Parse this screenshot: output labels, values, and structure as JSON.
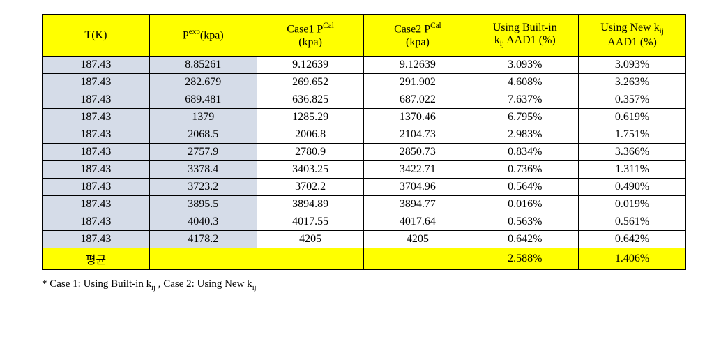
{
  "table": {
    "columns": [
      {
        "key": "tk",
        "labelHtml": "T(K)"
      },
      {
        "key": "pexp",
        "labelHtml": "P<sup>exp</sup>(kpa)"
      },
      {
        "key": "case1",
        "labelHtml": "Case1 P<sup>Cal</sup><br>(kpa)"
      },
      {
        "key": "case2",
        "labelHtml": "Case2 P<sup>Cal</sup><br>(kpa)"
      },
      {
        "key": "builtin",
        "labelHtml": "Using Built-in<br>k<sub>ij</sub> AAD1 (%)"
      },
      {
        "key": "newkij",
        "labelHtml": "Using New k<sub>ij</sub><br>AAD1 (%)"
      }
    ],
    "rows": [
      [
        "187.43",
        "8.85261",
        "9.12639",
        "9.12639",
        "3.093%",
        "3.093%"
      ],
      [
        "187.43",
        "282.679",
        "269.652",
        "291.902",
        "4.608%",
        "3.263%"
      ],
      [
        "187.43",
        "689.481",
        "636.825",
        "687.022",
        "7.637%",
        "0.357%"
      ],
      [
        "187.43",
        "1379",
        "1285.29",
        "1370.46",
        "6.795%",
        "0.619%"
      ],
      [
        "187.43",
        "2068.5",
        "2006.8",
        "2104.73",
        "2.983%",
        "1.751%"
      ],
      [
        "187.43",
        "2757.9",
        "2780.9",
        "2850.73",
        "0.834%",
        "3.366%"
      ],
      [
        "187.43",
        "3378.4",
        "3403.25",
        "3422.71",
        "0.736%",
        "1.311%"
      ],
      [
        "187.43",
        "3723.2",
        "3702.2",
        "3704.96",
        "0.564%",
        "0.490%"
      ],
      [
        "187.43",
        "3895.5",
        "3894.89",
        "3894.77",
        "0.016%",
        "0.019%"
      ],
      [
        "187.43",
        "4040.3",
        "4017.55",
        "4017.64",
        "0.563%",
        "0.561%"
      ],
      [
        "187.43",
        "4178.2",
        "4205",
        "4205",
        "0.642%",
        "0.642%"
      ]
    ],
    "avg": {
      "label": "평균",
      "builtin": "2.588%",
      "newkij": "1.406%"
    },
    "header_bg": "#ffff00",
    "shaded_cols_bg": "#d5dce8",
    "avg_row_bg": "#ffff00",
    "border_color": "#000000"
  },
  "footnoteHtml": "* Case 1: Using Built-in k<sub>ij</sub> , Case 2: Using New k<sub>ij</sub>"
}
